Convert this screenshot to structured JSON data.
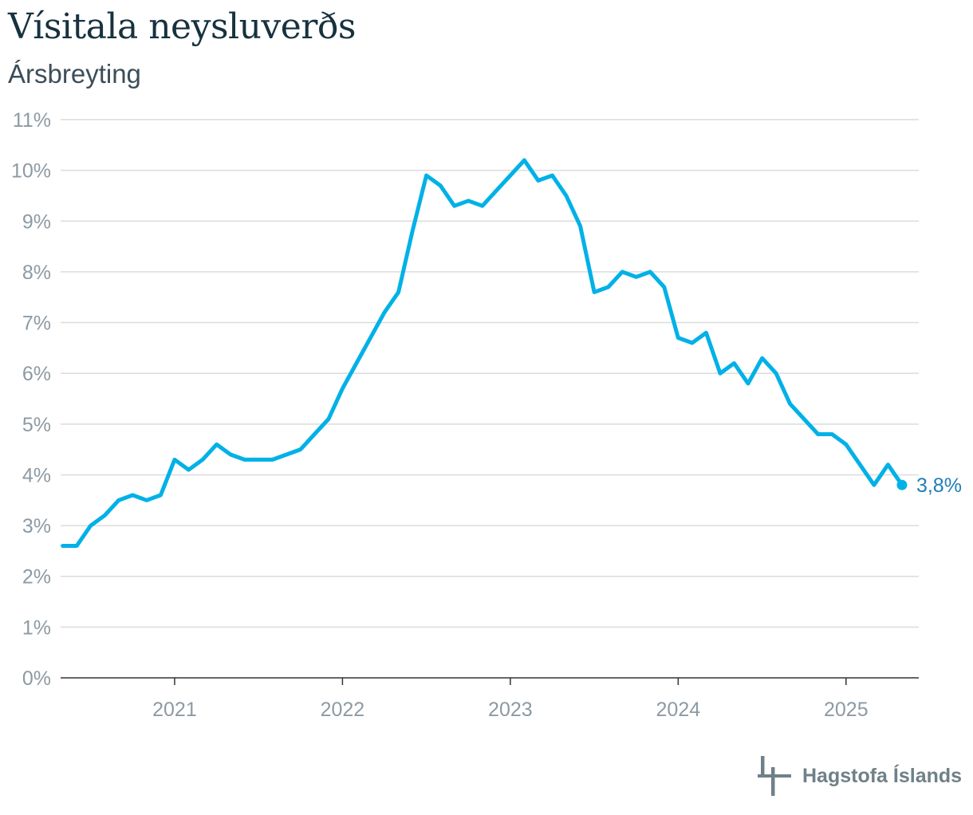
{
  "title": "Vísitala neysluverðs",
  "subtitle": "Ársbreyting",
  "logo": {
    "icon": "hagstofa-logo-icon",
    "text": "Hagstofa Íslands"
  },
  "colors": {
    "line": "#00b1e7",
    "label": "#1f7fb6",
    "grid": "#dcdcdc",
    "axis": "#333333",
    "tick": "#8d9aa3"
  },
  "chart_data": {
    "type": "line",
    "title": "Vísitala neysluverðs",
    "subtitle": "Ársbreyting",
    "xlabel": "",
    "ylabel": "",
    "ylim": [
      0,
      11
    ],
    "yticks": [
      "0%",
      "1%",
      "2%",
      "3%",
      "4%",
      "5%",
      "6%",
      "7%",
      "8%",
      "9%",
      "10%",
      "11%"
    ],
    "xticks": [
      "2021",
      "2022",
      "2023",
      "2024",
      "2025"
    ],
    "xlim": [
      "2020-05",
      "2025-06"
    ],
    "grid": true,
    "last_value_label": "3,8%",
    "series": [
      {
        "x": [
          "2020-05",
          "2020-06",
          "2020-07",
          "2020-08",
          "2020-09",
          "2020-10",
          "2020-11",
          "2020-12",
          "2021-01",
          "2021-02",
          "2021-03",
          "2021-04",
          "2021-05",
          "2021-06",
          "2021-07",
          "2021-08",
          "2021-09",
          "2021-10",
          "2021-11",
          "2021-12",
          "2022-01",
          "2022-02",
          "2022-03",
          "2022-04",
          "2022-05",
          "2022-06",
          "2022-07",
          "2022-08",
          "2022-09",
          "2022-10",
          "2022-11",
          "2022-12",
          "2023-01",
          "2023-02",
          "2023-03",
          "2023-04",
          "2023-05",
          "2023-06",
          "2023-07",
          "2023-08",
          "2023-09",
          "2023-10",
          "2023-11",
          "2023-12",
          "2024-01",
          "2024-02",
          "2024-03",
          "2024-04",
          "2024-05",
          "2024-06",
          "2024-07",
          "2024-08",
          "2024-09",
          "2024-10",
          "2024-11",
          "2024-12",
          "2025-01",
          "2025-02",
          "2025-03",
          "2025-04",
          "2025-05"
        ],
        "values": [
          2.6,
          2.6,
          3.0,
          3.2,
          3.5,
          3.6,
          3.5,
          3.6,
          4.3,
          4.1,
          4.3,
          4.6,
          4.4,
          4.3,
          4.3,
          4.3,
          4.4,
          4.5,
          4.8,
          5.1,
          5.7,
          6.2,
          6.7,
          7.2,
          7.6,
          8.8,
          9.9,
          9.7,
          9.3,
          9.4,
          9.3,
          9.6,
          9.9,
          10.2,
          9.8,
          9.9,
          9.5,
          8.9,
          7.6,
          7.7,
          8.0,
          7.9,
          8.0,
          7.7,
          6.7,
          6.6,
          6.8,
          6.0,
          6.2,
          5.8,
          6.3,
          6.0,
          5.4,
          5.1,
          4.8,
          4.8,
          4.6,
          4.2,
          3.8,
          4.2,
          3.8
        ]
      }
    ]
  }
}
